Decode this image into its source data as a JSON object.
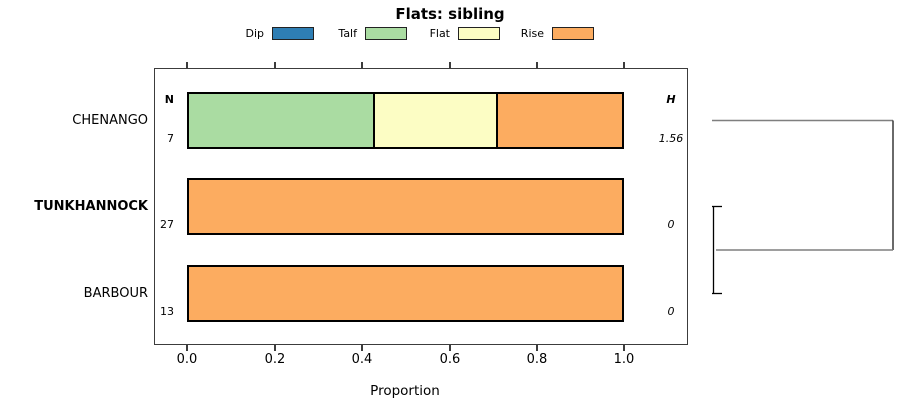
{
  "title": "Flats: sibling",
  "palette": {
    "Dip": "#2E7EB4",
    "Talf": "#AADCA2",
    "Flat": "#FCFDC4",
    "Rise": "#FCAC60"
  },
  "legend": {
    "items": [
      {
        "label": "Dip",
        "color": "#2E7EB4"
      },
      {
        "label": "Talf",
        "color": "#AADCA2"
      },
      {
        "label": "Flat",
        "color": "#FCFDC4"
      },
      {
        "label": "Rise",
        "color": "#FCAC60"
      }
    ]
  },
  "columns": {
    "n_header": "N",
    "h_header": "H"
  },
  "rows": [
    {
      "name": "CHENANGO",
      "bold": false,
      "n": "7",
      "h": "1.56",
      "segments": [
        {
          "category": "Talf",
          "fraction": 0.4286
        },
        {
          "category": "Flat",
          "fraction": 0.2857
        },
        {
          "category": "Rise",
          "fraction": 0.2857
        }
      ]
    },
    {
      "name": "TUNKHANNOCK",
      "bold": true,
      "n": "27",
      "h": "0",
      "segments": [
        {
          "category": "Rise",
          "fraction": 1.0
        }
      ]
    },
    {
      "name": "BARBOUR",
      "bold": false,
      "n": "13",
      "h": "0",
      "segments": [
        {
          "category": "Rise",
          "fraction": 1.0
        }
      ]
    }
  ],
  "axis": {
    "ticks": [
      "0.0",
      "0.2",
      "0.4",
      "0.6",
      "0.8",
      "1.0"
    ],
    "label": "Proportion"
  },
  "chart_data": {
    "type": "bar",
    "subtype": "stacked-horizontal-proportion",
    "title": "Flats: sibling",
    "xlabel": "Proportion",
    "xlim": [
      0,
      1
    ],
    "xticks": [
      0.0,
      0.2,
      0.4,
      0.6,
      0.8,
      1.0
    ],
    "categories": [
      "CHENANGO",
      "TUNKHANNOCK",
      "BARBOUR"
    ],
    "highlighted_category": "TUNKHANNOCK",
    "legend_entries": [
      "Dip",
      "Talf",
      "Flat",
      "Rise"
    ],
    "legend_colors": [
      "#2E7EB4",
      "#AADCA2",
      "#FCFDC4",
      "#FCAC60"
    ],
    "series": [
      {
        "name": "Dip",
        "values": [
          0,
          0,
          0
        ]
      },
      {
        "name": "Talf",
        "values": [
          0.4286,
          0,
          0
        ]
      },
      {
        "name": "Flat",
        "values": [
          0.2857,
          0,
          0
        ]
      },
      {
        "name": "Rise",
        "values": [
          0.2857,
          1.0,
          1.0
        ]
      }
    ],
    "N": [
      7,
      27,
      13
    ],
    "H": [
      1.56,
      0,
      0
    ],
    "dendrogram": {
      "position": "right-of-plot",
      "merges": [
        {
          "members": [
            "TUNKHANNOCK",
            "BARBOUR"
          ],
          "relative_height": "near zero"
        },
        {
          "members": [
            "CHENANGO",
            "TUNKHANNOCK+BARBOUR"
          ],
          "relative_height": "max"
        }
      ]
    }
  }
}
